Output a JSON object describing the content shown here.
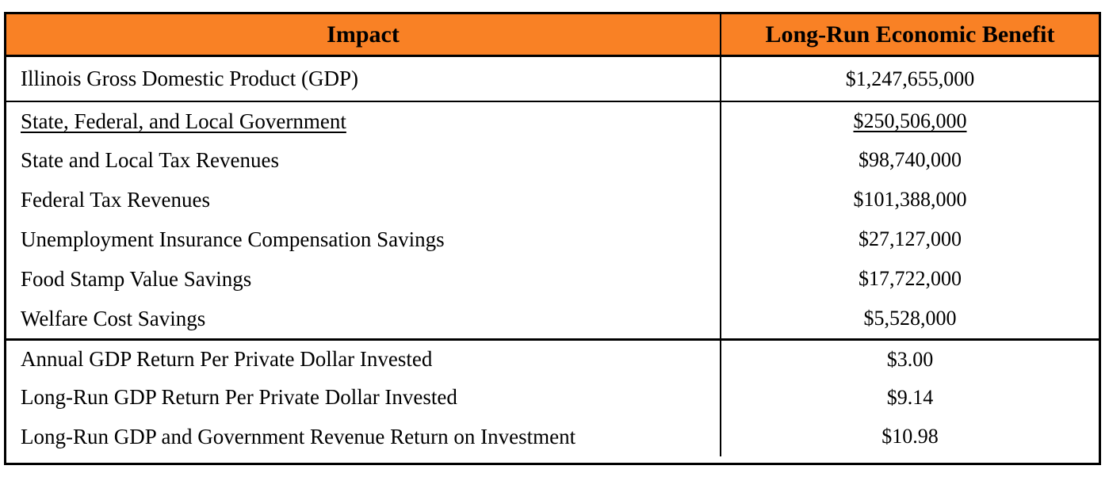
{
  "colors": {
    "header_bg": "#F98125",
    "border": "#000000",
    "text": "#000000"
  },
  "table": {
    "header": {
      "impact": "Impact",
      "benefit": "Long-Run Economic Benefit"
    },
    "sections": [
      {
        "rows": [
          {
            "label": "Illinois Gross Domestic Product (GDP)",
            "value": "$1,247,655,000",
            "underline": false
          }
        ]
      },
      {
        "rows": [
          {
            "label": "State, Federal, and Local Government",
            "value": "$250,506,000",
            "underline": true
          },
          {
            "label": "State and Local Tax Revenues",
            "value": "$98,740,000",
            "underline": false
          },
          {
            "label": "Federal Tax Revenues",
            "value": "$101,388,000",
            "underline": false
          },
          {
            "label": "Unemployment Insurance Compensation Savings",
            "value": "$27,127,000",
            "underline": false
          },
          {
            "label": "Food Stamp Value Savings",
            "value": "$17,722,000",
            "underline": false
          },
          {
            "label": "Welfare Cost Savings",
            "value": "$5,528,000",
            "underline": false
          }
        ]
      },
      {
        "rows": [
          {
            "label": "Annual GDP Return Per Private Dollar Invested",
            "value": "$3.00",
            "underline": false
          },
          {
            "label": "Long-Run GDP Return Per Private Dollar Invested",
            "value": "$9.14",
            "underline": false
          },
          {
            "label": "Long-Run GDP and Government Revenue Return on Investment",
            "value": "$10.98",
            "underline": false
          }
        ]
      }
    ]
  }
}
